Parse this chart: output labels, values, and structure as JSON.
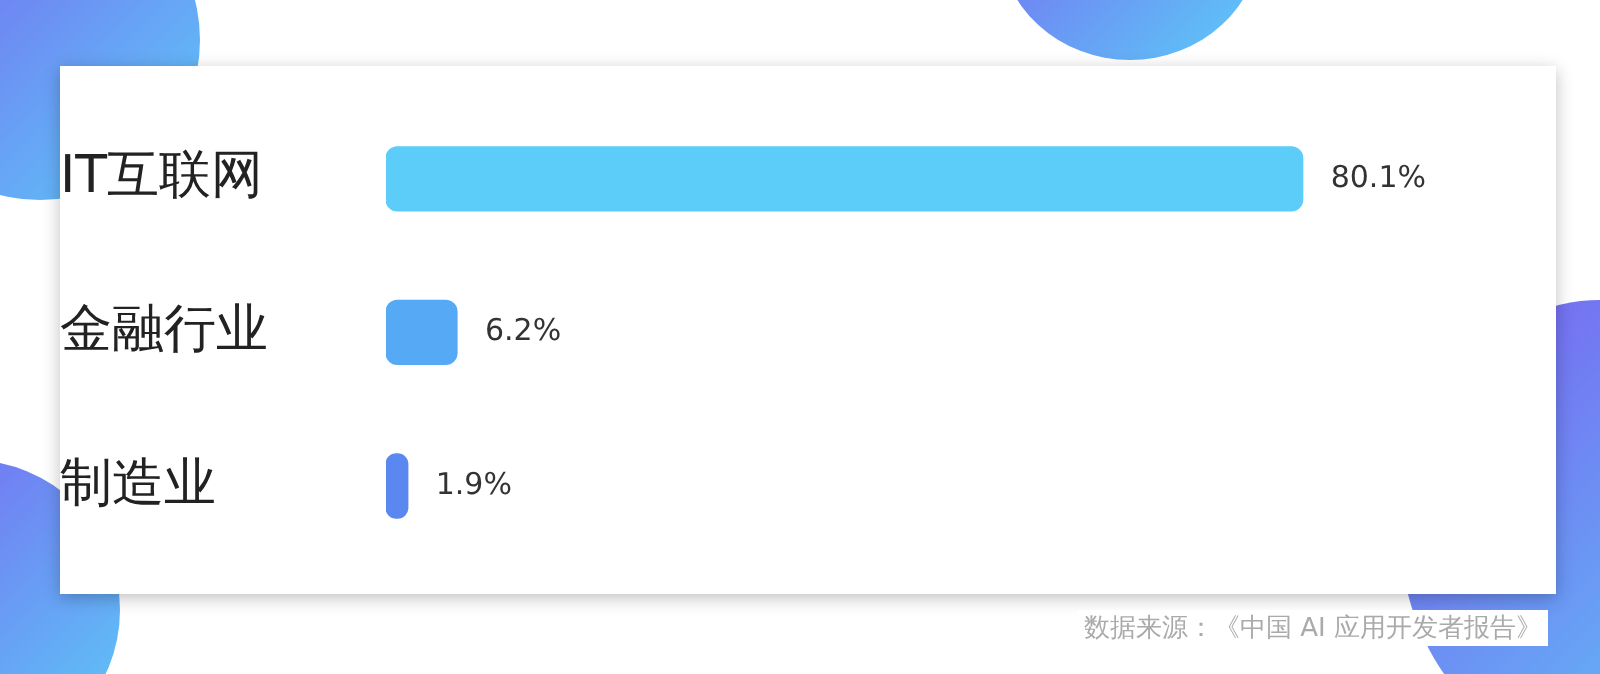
{
  "chart_data": {
    "type": "bar",
    "orientation": "horizontal",
    "categories": [
      "IT互联网",
      "金融行业",
      "制造业"
    ],
    "values": [
      80.1,
      6.2,
      1.9
    ],
    "colors": [
      "#5bcdf8",
      "#56a9f5",
      "#5b87f0"
    ],
    "value_labels": [
      "80.1%",
      "6.2%",
      "1.9%"
    ],
    "legend": false,
    "annotations": [
      "数据来源：《中国 AI 应用开发者报告》"
    ]
  }
}
